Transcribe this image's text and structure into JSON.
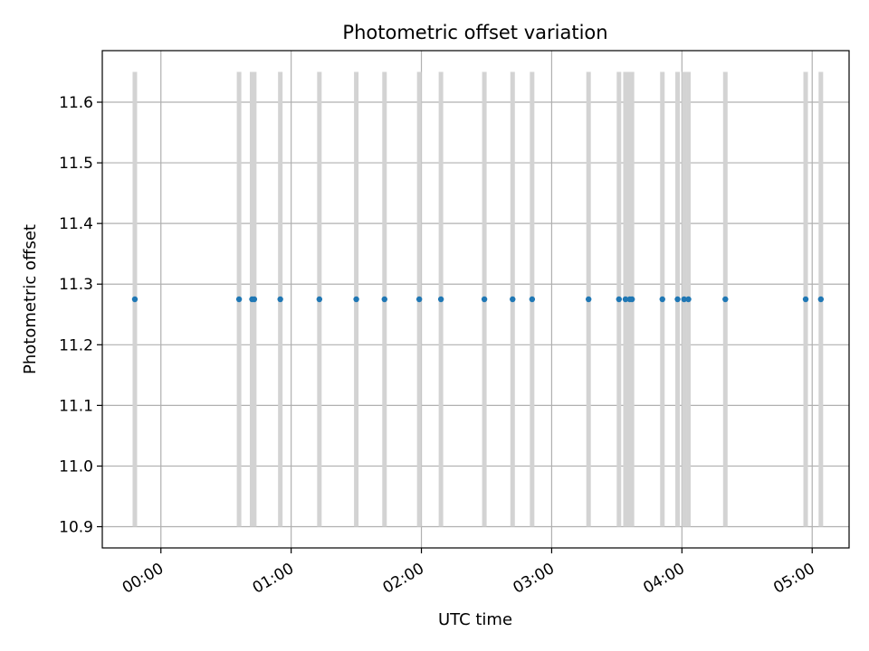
{
  "chart_data": {
    "type": "scatter",
    "title": "Photometric offset variation",
    "xlabel": "UTC time",
    "ylabel": "Photometric offset",
    "x_ticks": [
      "00:00",
      "01:00",
      "02:00",
      "03:00",
      "04:00",
      "05:00"
    ],
    "y_ticks": [
      "10.9",
      "11.0",
      "11.1",
      "11.2",
      "11.3",
      "11.4",
      "11.5",
      "11.6"
    ],
    "xlim": [
      "23:33",
      "05:17"
    ],
    "ylim": [
      10.865,
      11.685
    ],
    "grid": true,
    "point_color": "#1f77b4",
    "error_bar_color": "#d3d3d3",
    "x": [
      "23:48",
      "00:36",
      "00:42",
      "00:43",
      "00:55",
      "01:13",
      "01:30",
      "01:43",
      "01:59",
      "02:09",
      "02:29",
      "02:42",
      "02:51",
      "03:17",
      "03:31",
      "03:34",
      "03:36",
      "03:37",
      "03:51",
      "03:58",
      "04:01",
      "04:03",
      "04:20",
      "04:57",
      "05:04"
    ],
    "y": [
      11.275,
      11.275,
      11.275,
      11.275,
      11.275,
      11.275,
      11.275,
      11.275,
      11.275,
      11.275,
      11.275,
      11.275,
      11.275,
      11.275,
      11.275,
      11.275,
      11.275,
      11.275,
      11.275,
      11.275,
      11.275,
      11.275,
      11.275,
      11.275,
      11.275
    ],
    "yerr_low": 10.9,
    "yerr_high": 11.65
  }
}
